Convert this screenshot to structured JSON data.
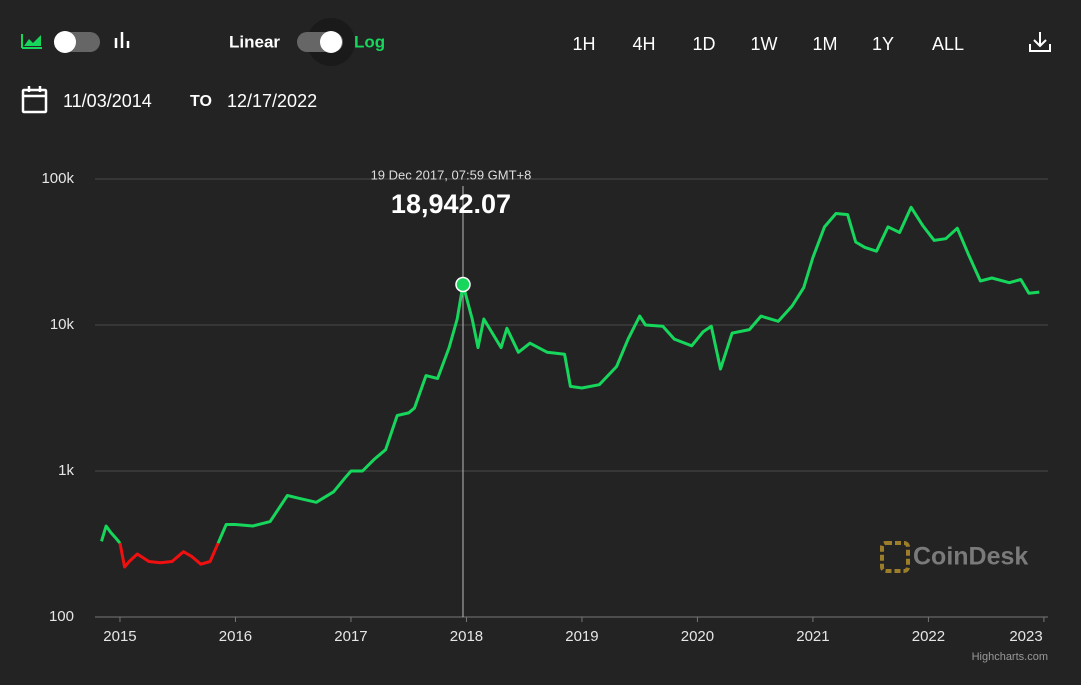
{
  "controls": {
    "linear_label": "Linear",
    "log_label": "Log",
    "ranges": [
      "1H",
      "4H",
      "1D",
      "1W",
      "1M",
      "1Y",
      "ALL"
    ],
    "from_date": "11/03/2014",
    "to_label": "TO",
    "to_date": "12/17/2022",
    "watermark": "CoinDesk",
    "credits": "Highcharts.com"
  },
  "chart_data": {
    "type": "line",
    "log_scale": true,
    "grid": true,
    "xlim": [
      2014.84,
      2022.96
    ],
    "xticks": [
      2015,
      2016,
      2017,
      2018,
      2019,
      2020,
      2021,
      2022,
      2023
    ],
    "ylim": [
      100,
      100000
    ],
    "yticks": [
      100,
      {
        "value": 1000,
        "label": "1k"
      },
      {
        "value": 10000,
        "label": "10k"
      },
      {
        "value": 100000,
        "label": "100k"
      }
    ],
    "series": [
      {
        "color": "#16d65c",
        "x": [
          2014.84,
          2014.88,
          2014.92,
          2014.96,
          2015.0
        ],
        "values": [
          330,
          420,
          380,
          350,
          320
        ]
      },
      {
        "color": "#f01010",
        "x": [
          2015.0,
          2015.04,
          2015.08,
          2015.15,
          2015.25,
          2015.35,
          2015.45,
          2015.55,
          2015.62,
          2015.7,
          2015.78,
          2015.85
        ],
        "values": [
          320,
          220,
          240,
          270,
          240,
          235,
          240,
          280,
          260,
          230,
          240,
          320
        ]
      },
      {
        "color": "#16d65c",
        "x": [
          2015.85,
          2015.92,
          2016.0,
          2016.15,
          2016.3,
          2016.45,
          2016.55,
          2016.7,
          2016.85,
          2016.95,
          2017.0,
          2017.1,
          2017.2,
          2017.3,
          2017.4,
          2017.5,
          2017.55,
          2017.65,
          2017.75,
          2017.85,
          2017.92,
          2017.97,
          2018.05,
          2018.1,
          2018.15,
          2018.3,
          2018.35,
          2018.45,
          2018.55,
          2018.7,
          2018.85,
          2018.9,
          2019.0,
          2019.15,
          2019.3,
          2019.4,
          2019.5,
          2019.55,
          2019.7,
          2019.8,
          2019.95,
          2020.05,
          2020.12,
          2020.2,
          2020.3,
          2020.45,
          2020.55,
          2020.7,
          2020.82,
          2020.92,
          2021.0,
          2021.1,
          2021.2,
          2021.3,
          2021.37,
          2021.45,
          2021.55,
          2021.65,
          2021.75,
          2021.85,
          2021.95,
          2022.05,
          2022.15,
          2022.25,
          2022.35,
          2022.45,
          2022.55,
          2022.7,
          2022.8,
          2022.87,
          2022.96
        ],
        "values": [
          320,
          430,
          430,
          420,
          450,
          680,
          650,
          610,
          720,
          900,
          1000,
          1000,
          1200,
          1400,
          2400,
          2500,
          2700,
          4500,
          4300,
          7000,
          11000,
          18942.07,
          11000,
          7000,
          11000,
          7000,
          9500,
          6500,
          7500,
          6500,
          6300,
          3800,
          3700,
          3900,
          5200,
          8000,
          11500,
          10000,
          9800,
          8000,
          7200,
          9000,
          9800,
          5000,
          8800,
          9300,
          11500,
          10600,
          13500,
          18000,
          29000,
          47000,
          58000,
          57000,
          37000,
          34000,
          32000,
          47000,
          43000,
          64000,
          48000,
          38000,
          39000,
          46000,
          30000,
          20000,
          21000,
          19500,
          20500,
          16500,
          16800
        ]
      }
    ],
    "annotation": {
      "text": "19 Dec 2017, 07:59 GMT+8",
      "x": 2017.97,
      "value": 18942.07,
      "label": "18,942.07"
    }
  }
}
